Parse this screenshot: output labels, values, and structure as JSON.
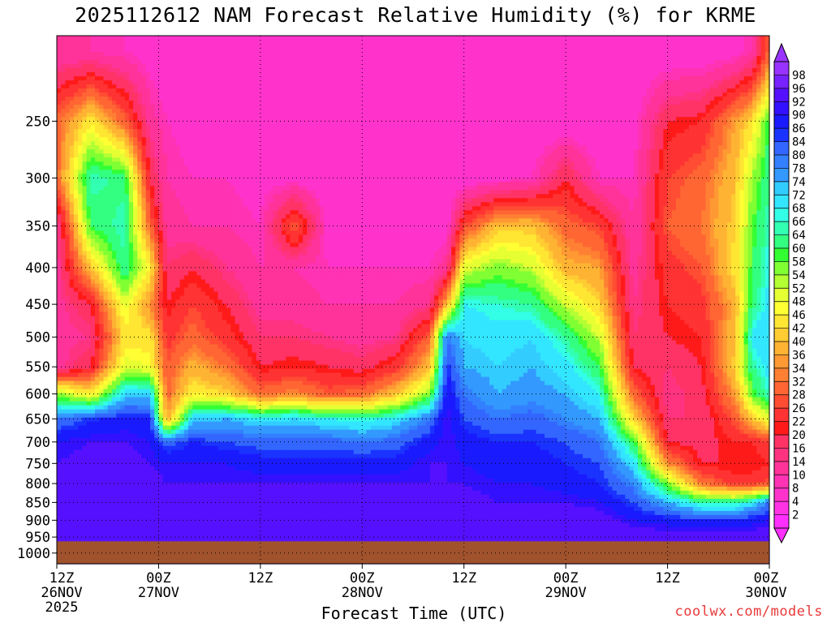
{
  "title": "2025112612 NAM Forecast Relative Humidity (%) for KRME",
  "xlabel": "Forecast Time (UTC)",
  "watermark": "coolwx.com/models",
  "chart_data": {
    "type": "heatmap",
    "title": "2025112612 NAM Forecast Relative Humidity (%) for KRME",
    "xlabel": "Forecast Time (UTC)",
    "ylabel": "",
    "x_range_hours": [
      0,
      84
    ],
    "x_ticks": [
      {
        "h": 0,
        "label": "12Z",
        "date": "26NOV",
        "year": "2025"
      },
      {
        "h": 12,
        "label": "00Z",
        "date": "27NOV",
        "year": ""
      },
      {
        "h": 24,
        "label": "12Z",
        "date": "",
        "year": ""
      },
      {
        "h": 36,
        "label": "00Z",
        "date": "28NOV",
        "year": ""
      },
      {
        "h": 48,
        "label": "12Z",
        "date": "",
        "year": ""
      },
      {
        "h": 60,
        "label": "00Z",
        "date": "29NOV",
        "year": ""
      },
      {
        "h": 72,
        "label": "12Z",
        "date": "",
        "year": ""
      },
      {
        "h": 84,
        "label": "00Z",
        "date": "30NOV",
        "year": ""
      }
    ],
    "y_ticks": [
      250,
      300,
      350,
      400,
      450,
      500,
      550,
      600,
      650,
      700,
      750,
      800,
      850,
      900,
      950,
      1000
    ],
    "y_range_hpa": [
      190,
      1035
    ],
    "y_scale": "log-pressure (inverted)",
    "grid": true,
    "surface_fill_color": "#a0522d",
    "surface_pressure_hpa": 963,
    "colorbar": {
      "levels": [
        2,
        4,
        8,
        10,
        14,
        16,
        20,
        22,
        26,
        28,
        32,
        34,
        36,
        40,
        42,
        46,
        48,
        52,
        54,
        58,
        60,
        64,
        66,
        68,
        72,
        74,
        78,
        80,
        84,
        86,
        90,
        92,
        96,
        98
      ],
      "colors": [
        "#ff2fff",
        "#ff33e6",
        "#ff33cc",
        "#ff33b3",
        "#ff3399",
        "#ff3380",
        "#ff3366",
        "#ff1a1a",
        "#ff3333",
        "#ff4d33",
        "#ff6633",
        "#ff8033",
        "#ff9933",
        "#ffb333",
        "#ffcc33",
        "#ffe633",
        "#ffff33",
        "#e6ff33",
        "#b3ff33",
        "#80ff33",
        "#33ff33",
        "#33ff80",
        "#33ffb3",
        "#33ffe6",
        "#33e6ff",
        "#33ccff",
        "#3399ff",
        "#3380ff",
        "#3366ff",
        "#1a33ff",
        "#1a1aff",
        "#3311ff",
        "#5511ff",
        "#7722ff",
        "#9933ff"
      ],
      "extend": "both"
    },
    "pressure_levels": [
      200,
      250,
      300,
      350,
      400,
      450,
      500,
      550,
      600,
      650,
      700,
      750,
      800,
      850,
      900,
      950,
      1000
    ],
    "profiles": [
      {
        "h": 0,
        "rh": [
          10,
          30,
          30,
          12,
          12,
          12,
          12,
          12,
          55,
          80,
          90,
          92,
          94,
          95,
          95,
          95,
          95
        ]
      },
      {
        "h": 4,
        "rh": [
          10,
          45,
          66,
          60,
          40,
          20,
          14,
          20,
          45,
          85,
          92,
          94,
          95,
          95,
          95,
          95,
          95
        ]
      },
      {
        "h": 8,
        "rh": [
          8,
          30,
          62,
          66,
          64,
          50,
          44,
          50,
          72,
          88,
          92,
          94,
          95,
          95,
          95,
          95,
          95
        ]
      },
      {
        "h": 11,
        "rh": [
          6,
          12,
          20,
          30,
          46,
          34,
          44,
          48,
          72,
          86,
          90,
          92,
          94,
          95,
          95,
          95,
          95
        ]
      },
      {
        "h": 13,
        "rh": [
          4,
          8,
          10,
          12,
          16,
          20,
          24,
          28,
          30,
          36,
          82,
          90,
          92,
          94,
          95,
          95,
          95
        ]
      },
      {
        "h": 16,
        "rh": [
          4,
          6,
          8,
          10,
          20,
          26,
          30,
          38,
          46,
          72,
          86,
          90,
          92,
          94,
          95,
          95,
          95
        ]
      },
      {
        "h": 20,
        "rh": [
          4,
          6,
          8,
          10,
          14,
          20,
          24,
          32,
          42,
          74,
          84,
          90,
          92,
          94,
          95,
          95,
          95
        ]
      },
      {
        "h": 24,
        "rh": [
          4,
          4,
          6,
          8,
          10,
          12,
          16,
          20,
          30,
          70,
          82,
          88,
          92,
          94,
          95,
          95,
          95
        ]
      },
      {
        "h": 28,
        "rh": [
          4,
          4,
          6,
          30,
          10,
          12,
          16,
          22,
          34,
          72,
          82,
          88,
          92,
          94,
          95,
          95,
          95
        ]
      },
      {
        "h": 32,
        "rh": [
          4,
          4,
          4,
          6,
          8,
          10,
          14,
          20,
          28,
          68,
          82,
          88,
          92,
          94,
          95,
          95,
          95
        ]
      },
      {
        "h": 36,
        "rh": [
          4,
          4,
          4,
          6,
          8,
          10,
          12,
          18,
          30,
          66,
          80,
          88,
          92,
          94,
          95,
          95,
          95
        ]
      },
      {
        "h": 40,
        "rh": [
          4,
          4,
          4,
          6,
          8,
          10,
          14,
          24,
          40,
          70,
          82,
          88,
          92,
          94,
          95,
          95,
          95
        ]
      },
      {
        "h": 44,
        "rh": [
          4,
          4,
          4,
          6,
          8,
          14,
          30,
          40,
          56,
          80,
          88,
          92,
          92,
          94,
          95,
          95,
          95
        ]
      },
      {
        "h": 46,
        "rh": [
          4,
          4,
          4,
          6,
          12,
          40,
          80,
          86,
          90,
          92,
          92,
          92,
          92,
          94,
          95,
          95,
          95
        ]
      },
      {
        "h": 48,
        "rh": [
          4,
          4,
          4,
          26,
          50,
          68,
          72,
          74,
          80,
          84,
          88,
          90,
          92,
          94,
          95,
          95,
          95
        ]
      },
      {
        "h": 52,
        "rh": [
          4,
          4,
          6,
          40,
          56,
          66,
          70,
          72,
          74,
          80,
          86,
          88,
          90,
          92,
          95,
          95,
          95
        ]
      },
      {
        "h": 56,
        "rh": [
          4,
          4,
          8,
          40,
          52,
          64,
          72,
          74,
          76,
          82,
          86,
          88,
          90,
          92,
          95,
          95,
          95
        ]
      },
      {
        "h": 60,
        "rh": [
          4,
          4,
          20,
          30,
          38,
          52,
          64,
          70,
          74,
          78,
          84,
          86,
          88,
          92,
          95,
          95,
          95
        ]
      },
      {
        "h": 64,
        "rh": [
          4,
          4,
          8,
          26,
          36,
          42,
          52,
          60,
          68,
          74,
          80,
          84,
          86,
          90,
          95,
          95,
          95
        ]
      },
      {
        "h": 68,
        "rh": [
          4,
          6,
          8,
          10,
          12,
          14,
          16,
          20,
          30,
          42,
          60,
          70,
          78,
          84,
          90,
          95,
          95
        ]
      },
      {
        "h": 72,
        "rh": [
          4,
          20,
          26,
          28,
          24,
          22,
          20,
          16,
          14,
          16,
          20,
          34,
          56,
          74,
          88,
          95,
          95
        ]
      },
      {
        "h": 76,
        "rh": [
          4,
          22,
          30,
          32,
          28,
          24,
          22,
          20,
          18,
          16,
          18,
          20,
          32,
          64,
          86,
          95,
          95
        ]
      },
      {
        "h": 80,
        "rh": [
          6,
          36,
          40,
          42,
          44,
          38,
          40,
          42,
          36,
          28,
          22,
          20,
          24,
          64,
          86,
          95,
          95
        ]
      },
      {
        "h": 82,
        "rh": [
          10,
          44,
          54,
          58,
          60,
          62,
          70,
          64,
          58,
          40,
          22,
          20,
          24,
          70,
          88,
          95,
          95
        ]
      },
      {
        "h": 84,
        "rh": [
          30,
          60,
          64,
          66,
          68,
          70,
          72,
          70,
          66,
          50,
          26,
          22,
          28,
          80,
          90,
          95,
          95
        ]
      }
    ]
  }
}
